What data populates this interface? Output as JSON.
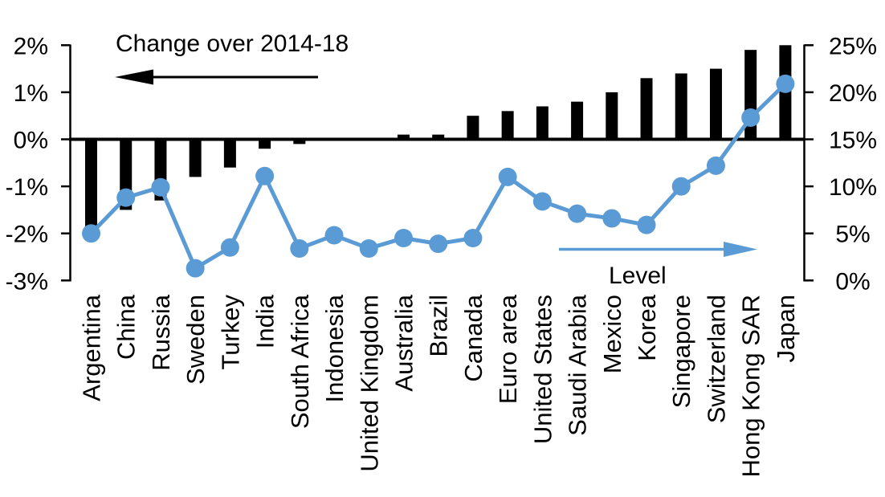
{
  "chart_data": {
    "type": "combo",
    "title": "",
    "categories": [
      "Argentina",
      "China",
      "Russia",
      "Sweden",
      "Turkey",
      "India",
      "South Africa",
      "Indonesia",
      "United Kingdom",
      "Australia",
      "Brazil",
      "Canada",
      "Euro area",
      "United States",
      "Saudi Arabia",
      "Mexico",
      "Korea",
      "Singapore",
      "Switzerland",
      "Hong Kong SAR",
      "Japan"
    ],
    "series": [
      {
        "name": "Change over 2014-18",
        "type": "bar",
        "axis": "left",
        "color": "#000000",
        "unit": "%",
        "values": [
          -1.9,
          -1.5,
          -1.3,
          -0.8,
          -0.6,
          -0.2,
          -0.1,
          0,
          0,
          0.1,
          0.1,
          0.5,
          0.6,
          0.7,
          0.8,
          1.0,
          1.3,
          1.4,
          1.5,
          1.9,
          2.0
        ]
      },
      {
        "name": "Level",
        "type": "line",
        "axis": "right",
        "color": "#5b9bd5",
        "unit": "%",
        "values": [
          5.0,
          8.8,
          9.9,
          1.3,
          3.5,
          11.1,
          3.4,
          4.8,
          3.4,
          4.5,
          3.9,
          4.5,
          11.0,
          8.4,
          7.1,
          6.6,
          5.9,
          10.0,
          12.2,
          17.3,
          20.9
        ]
      }
    ],
    "left_axis": {
      "min": -3,
      "max": 2,
      "tick_values": [
        2,
        1,
        0,
        -1,
        -2,
        -3
      ],
      "tick_labels": [
        "2%",
        "1%",
        "0%",
        "-1%",
        "-2%",
        "-3%"
      ]
    },
    "right_axis": {
      "min": 0,
      "max": 25,
      "tick_values": [
        25,
        20,
        15,
        10,
        5,
        0
      ],
      "tick_labels": [
        "25%",
        "20%",
        "15%",
        "10%",
        "5%",
        "0%"
      ]
    },
    "annotations": {
      "change": {
        "label": "Change over 2014-18",
        "arrow_direction": "left",
        "color": "#000000"
      },
      "level": {
        "label": "Level",
        "arrow_direction": "right",
        "color": "#5b9bd5"
      }
    },
    "grid": "off",
    "legend_position": "in-plot-annotations",
    "background": "#ffffff"
  }
}
